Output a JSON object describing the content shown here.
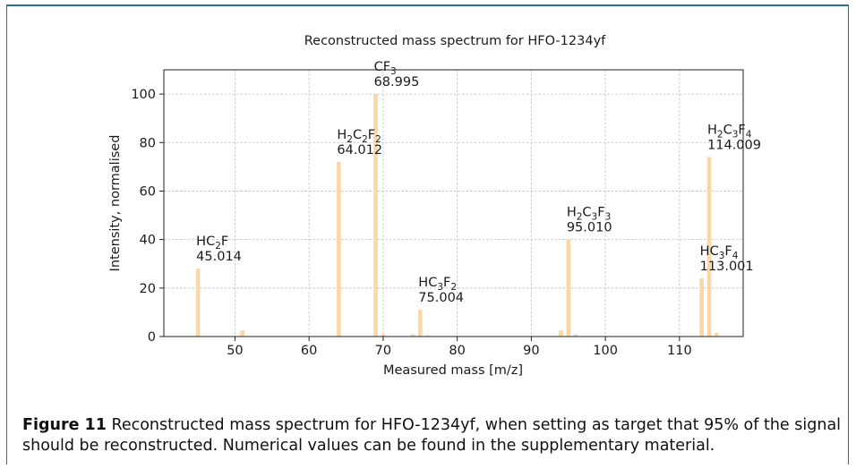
{
  "chart_data": {
    "type": "bar",
    "title": "Reconstructed mass spectrum for HFO-1234yf",
    "xlabel": "Measured mass [m/z]",
    "ylabel": "Intensity, normalised",
    "xlim": [
      40.4,
      118.6
    ],
    "ylim": [
      0,
      110
    ],
    "xticks": [
      50,
      60,
      70,
      80,
      90,
      100,
      110
    ],
    "yticks": [
      0,
      20,
      40,
      60,
      80,
      100
    ],
    "grid": true,
    "bar_color": "#fbd7a6",
    "bars": [
      {
        "x": 45.014,
        "y": 28
      },
      {
        "x": 51,
        "y": 2.5
      },
      {
        "x": 64.012,
        "y": 72
      },
      {
        "x": 68.995,
        "y": 100
      },
      {
        "x": 70,
        "y": 1
      },
      {
        "x": 74,
        "y": 1
      },
      {
        "x": 75.004,
        "y": 11
      },
      {
        "x": 76,
        "y": 0.5
      },
      {
        "x": 94,
        "y": 2.5
      },
      {
        "x": 95.01,
        "y": 40
      },
      {
        "x": 96,
        "y": 1
      },
      {
        "x": 113.001,
        "y": 24
      },
      {
        "x": 114.009,
        "y": 74
      },
      {
        "x": 115,
        "y": 1.5
      }
    ],
    "annotations": [
      {
        "x": 45.014,
        "y": 28,
        "formula": [
          [
            "H",
            ""
          ],
          [
            "C",
            "2"
          ],
          [
            "F",
            ""
          ]
        ],
        "mass": "45.014"
      },
      {
        "x": 64.012,
        "y": 72,
        "formula": [
          [
            "H",
            "2"
          ],
          [
            "C",
            "2"
          ],
          [
            "F",
            "2"
          ]
        ],
        "mass": "64.012"
      },
      {
        "x": 68.995,
        "y": 100,
        "formula": [
          [
            "C",
            ""
          ],
          [
            "F",
            "3"
          ]
        ],
        "mass": "68.995"
      },
      {
        "x": 75.004,
        "y": 11,
        "formula": [
          [
            "H",
            ""
          ],
          [
            "C",
            "3"
          ],
          [
            "F",
            "2"
          ]
        ],
        "mass": "75.004"
      },
      {
        "x": 95.01,
        "y": 40,
        "formula": [
          [
            "H",
            "2"
          ],
          [
            "C",
            "3"
          ],
          [
            "F",
            "3"
          ]
        ],
        "mass": "95.010"
      },
      {
        "x": 113.001,
        "y": 24,
        "formula": [
          [
            "H",
            ""
          ],
          [
            "C",
            "3"
          ],
          [
            "F",
            "4"
          ]
        ],
        "mass": "113.001"
      },
      {
        "x": 114.009,
        "y": 74,
        "formula": [
          [
            "H",
            "2"
          ],
          [
            "C",
            "3"
          ],
          [
            "F",
            "4"
          ]
        ],
        "mass": "114.009"
      }
    ]
  },
  "caption": {
    "label": "Figure 11",
    "text": "Reconstructed mass spectrum for HFO-1234yf, when setting as target that 95% of the signal should be reconstructed. Numerical values can be found in the supplementary material."
  }
}
